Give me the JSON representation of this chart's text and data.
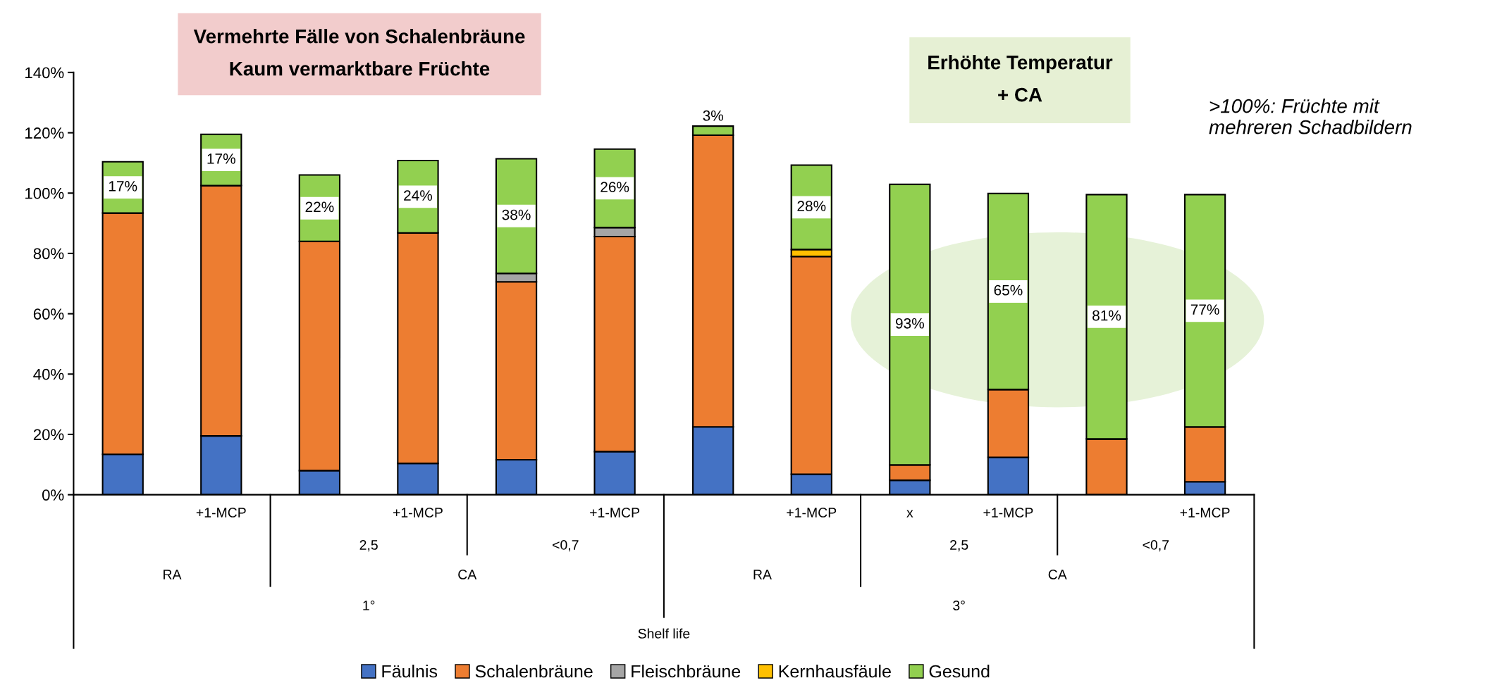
{
  "chart_data": {
    "type": "bar",
    "stacked": true,
    "categories": [
      null,
      "+1-MCP",
      null,
      "+1-MCP",
      null,
      "+1-MCP",
      null,
      "+1-MCP",
      "x",
      "+1-MCP",
      null,
      "+1-MCP"
    ],
    "series": [
      {
        "name": "Fäulnis",
        "color": "#4472c4",
        "values": [
          13.4,
          19.5,
          8,
          10.4,
          11.6,
          14.3,
          22.5,
          6.8,
          4.8,
          12.4,
          0,
          4.3
        ]
      },
      {
        "name": "Schalenbräune",
        "color": "#ed7d31",
        "values": [
          80,
          83,
          76,
          76.4,
          59,
          71.3,
          96.7,
          72.2,
          5.1,
          22.5,
          18.5,
          18.2
        ]
      },
      {
        "name": "Fleischbräune",
        "color": "#a5a5a5",
        "values": [
          0,
          0,
          0,
          0,
          2.8,
          3,
          0,
          0,
          0,
          0,
          0,
          0
        ]
      },
      {
        "name": "Kernhausfäule",
        "color": "#ffc000",
        "values": [
          0,
          0,
          0,
          0,
          0,
          0,
          0,
          2.3,
          0,
          0,
          0,
          0
        ]
      },
      {
        "name": "Gesund",
        "color": "#92d050",
        "values": [
          17,
          17,
          22,
          24,
          38,
          26,
          3,
          28,
          93,
          65,
          81,
          77
        ],
        "value_labels": [
          "17%",
          "17%",
          "22%",
          "24%",
          "38%",
          "26%",
          "3%",
          "28%",
          "93%",
          "65%",
          "81%",
          "77%"
        ]
      }
    ],
    "ylim": [
      0,
      140
    ],
    "yticks": [
      {
        "value": 0,
        "label": "0%"
      },
      {
        "value": 20,
        "label": "20%"
      },
      {
        "value": 40,
        "label": "40%"
      },
      {
        "value": 60,
        "label": "60%"
      },
      {
        "value": 80,
        "label": "80%"
      },
      {
        "value": 100,
        "label": "100%"
      },
      {
        "value": 120,
        "label": "120%"
      },
      {
        "value": 140,
        "label": "140%"
      }
    ],
    "grid": false,
    "legend": "bottom",
    "annotations": [
      "Vermehrte Fälle von Schalenbräune\nKaum vermarktbare Früchte",
      "Erhöhte Temperatur\n+ CA",
      ">100%: Früchte mit\nmehreren Schadbildern",
      "2,5",
      "<0,7",
      "2,5",
      "<0,7",
      "RA",
      "CA",
      "RA",
      "CA",
      "1°",
      "3°",
      "Shelf life"
    ]
  }
}
